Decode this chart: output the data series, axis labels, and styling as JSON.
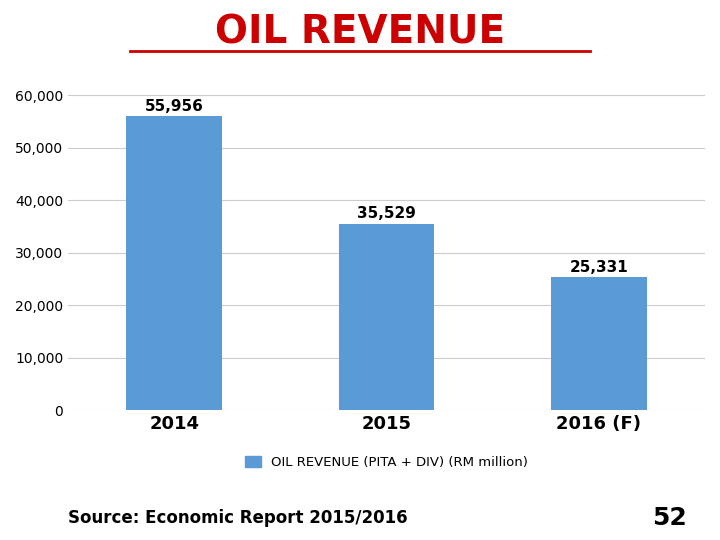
{
  "title": "OIL REVENUE",
  "title_color": "#CC0000",
  "title_fontsize": 28,
  "categories": [
    "2014",
    "2015",
    "2016 (F)"
  ],
  "values": [
    55956,
    35529,
    25331
  ],
  "bar_color": "#5B9BD5",
  "bar_width": 0.45,
  "ylim": [
    0,
    65000
  ],
  "yticks": [
    0,
    10000,
    20000,
    30000,
    40000,
    50000,
    60000
  ],
  "value_labels": [
    "55,956",
    "35,529",
    "25,331"
  ],
  "legend_label": "OIL REVENUE (PITA + DIV) (RM million)",
  "legend_color": "#5B9BD5",
  "source_text": "Source: Economic Report 2015/2016",
  "page_number": "52",
  "background_color": "#FFFFFF",
  "grid_color": "#CCCCCC",
  "xlabel_fontsize": 13,
  "annotation_fontsize": 11,
  "legend_fontsize": 9.5,
  "source_fontsize": 12
}
